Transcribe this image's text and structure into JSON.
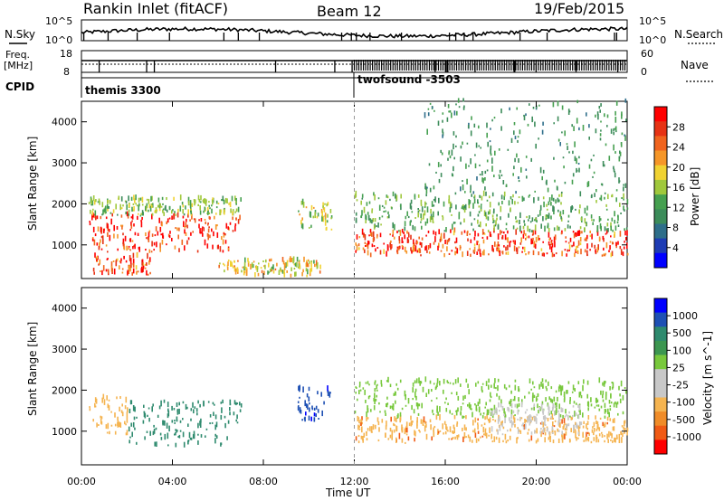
{
  "header": {
    "title": "Rankin Inlet (fitACF)",
    "beam": "Beam 12",
    "date": "19/Feb/2015"
  },
  "noise_panel": {
    "left_label": "N.Sky",
    "right_label": "N.Search",
    "left_ticks": [
      "10^5",
      "10^0"
    ],
    "right_ticks": [
      "10^5",
      "10^0"
    ]
  },
  "freq_panel": {
    "left_label_1": "Freq.",
    "left_label_2": "[MHz]",
    "right_label": "Nave",
    "left_ticks": [
      "18",
      "8"
    ],
    "right_ticks": [
      "60",
      "0"
    ]
  },
  "cpid_panel": {
    "label": "CPID",
    "modes": [
      {
        "name": "themis 3300",
        "start_hour": 0,
        "end_hour": 12
      },
      {
        "name": "twofsound -3503",
        "start_hour": 12,
        "end_hour": 24
      }
    ]
  },
  "colors": {
    "power_scale": [
      "#0000ff",
      "#1e3cb4",
      "#2e6e8a",
      "#3c8c5a",
      "#46a050",
      "#a0c83c",
      "#f0d232",
      "#f59628",
      "#f0641e",
      "#e63214",
      "#ff0000"
    ],
    "velocity_scale": [
      "#ff0000",
      "#f05a14",
      "#f08c28",
      "#f5b450",
      "#c8c8c8",
      "#c8c8c8",
      "#78c83c",
      "#3c9650",
      "#2e8a6e",
      "#1e50b4",
      "#0000ff"
    ]
  },
  "chart_data": [
    {
      "type": "heatmap",
      "title": "",
      "xlabel": "Time UT",
      "ylabel": "Slant Range [km]",
      "xlim": [
        0,
        24
      ],
      "ylim": [
        180,
        4500
      ],
      "x_ticks": [
        "00:00",
        "04:00",
        "08:00",
        "12:00",
        "16:00",
        "20:00",
        "00:00"
      ],
      "y_ticks": [
        "1000",
        "2000",
        "3000",
        "4000"
      ],
      "colorbar": {
        "label": "Power [dB]",
        "range": [
          0,
          30
        ],
        "ticks": [
          "28",
          "24",
          "20",
          "16",
          "12",
          "8",
          "4"
        ]
      },
      "data": [
        {
          "t_start": 0.3,
          "t_end": 7.0,
          "r_lo": 800,
          "r_hi": 1700,
          "value": 28
        },
        {
          "t_start": 0.3,
          "t_end": 7.0,
          "r_lo": 1700,
          "r_hi": 2100,
          "value": 14
        },
        {
          "t_start": 0.5,
          "t_end": 3.0,
          "r_lo": 250,
          "r_hi": 700,
          "value": 26
        },
        {
          "t_start": 9.5,
          "t_end": 11.0,
          "r_lo": 1300,
          "r_hi": 2000,
          "value": 16
        },
        {
          "t_start": 6.0,
          "t_end": 10.5,
          "r_lo": 200,
          "r_hi": 600,
          "value": 18
        },
        {
          "t_start": 12.0,
          "t_end": 24.0,
          "r_lo": 700,
          "r_hi": 1300,
          "value": 27
        },
        {
          "t_start": 12.0,
          "t_end": 24.0,
          "r_lo": 1300,
          "r_hi": 2200,
          "value": 12
        },
        {
          "t_start": 15.0,
          "t_end": 24.0,
          "r_lo": 2200,
          "r_hi": 4500,
          "value": 10
        }
      ]
    },
    {
      "type": "heatmap",
      "title": "",
      "xlabel": "Time UT",
      "ylabel": "Slant Range [km]",
      "xlim": [
        0,
        24
      ],
      "ylim": [
        180,
        4500
      ],
      "x_ticks": [
        "00:00",
        "04:00",
        "08:00",
        "12:00",
        "16:00",
        "20:00",
        "00:00"
      ],
      "y_ticks": [
        "1000",
        "2000",
        "3000",
        "4000"
      ],
      "colorbar": {
        "label": "Velocity [m s^-1]",
        "ticks": [
          "1000",
          "500",
          "100",
          "25",
          "-25",
          "-100",
          "-500",
          "-1000"
        ]
      },
      "data": [
        {
          "t_start": 2.0,
          "t_end": 7.0,
          "r_lo": 600,
          "r_hi": 1700,
          "value": 200
        },
        {
          "t_start": 0.3,
          "t_end": 2.0,
          "r_lo": 900,
          "r_hi": 1800,
          "value": -300
        },
        {
          "t_start": 9.5,
          "t_end": 11.0,
          "r_lo": 1200,
          "r_hi": 2000,
          "value": 800
        },
        {
          "t_start": 12.0,
          "t_end": 24.0,
          "r_lo": 700,
          "r_hi": 1300,
          "value": -400
        },
        {
          "t_start": 12.0,
          "t_end": 24.0,
          "r_lo": 1300,
          "r_hi": 2200,
          "value": 50
        },
        {
          "t_start": 18.0,
          "t_end": 22.0,
          "r_lo": 900,
          "r_hi": 1600,
          "value": 0
        }
      ]
    }
  ]
}
